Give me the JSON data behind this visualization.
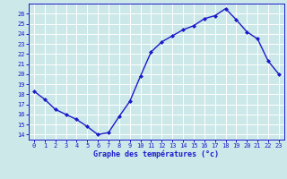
{
  "x": [
    0,
    1,
    2,
    3,
    4,
    5,
    6,
    7,
    8,
    9,
    10,
    11,
    12,
    13,
    14,
    15,
    16,
    17,
    18,
    19,
    20,
    21,
    22,
    23
  ],
  "y": [
    18.3,
    17.5,
    16.5,
    16.0,
    15.5,
    14.8,
    14.0,
    14.2,
    15.8,
    17.3,
    19.8,
    22.2,
    23.2,
    23.8,
    24.4,
    24.8,
    25.5,
    25.8,
    26.5,
    25.4,
    24.2,
    23.5,
    21.3,
    20.0
  ],
  "line_color": "#1a1acc",
  "marker": "D",
  "markersize": 2.0,
  "linewidth": 1.0,
  "bg_color": "#cce8e8",
  "grid_color": "#ffffff",
  "title": "Graphe des températures (°c)",
  "ylim": [
    13.5,
    27.0
  ],
  "xlim": [
    -0.5,
    23.5
  ],
  "yticks": [
    14,
    15,
    16,
    17,
    18,
    19,
    20,
    21,
    22,
    23,
    24,
    25,
    26
  ],
  "xticks": [
    0,
    1,
    2,
    3,
    4,
    5,
    6,
    7,
    8,
    9,
    10,
    11,
    12,
    13,
    14,
    15,
    16,
    17,
    18,
    19,
    20,
    21,
    22,
    23
  ],
  "tick_fontsize": 5.0,
  "xlabel_fontsize": 6.0
}
